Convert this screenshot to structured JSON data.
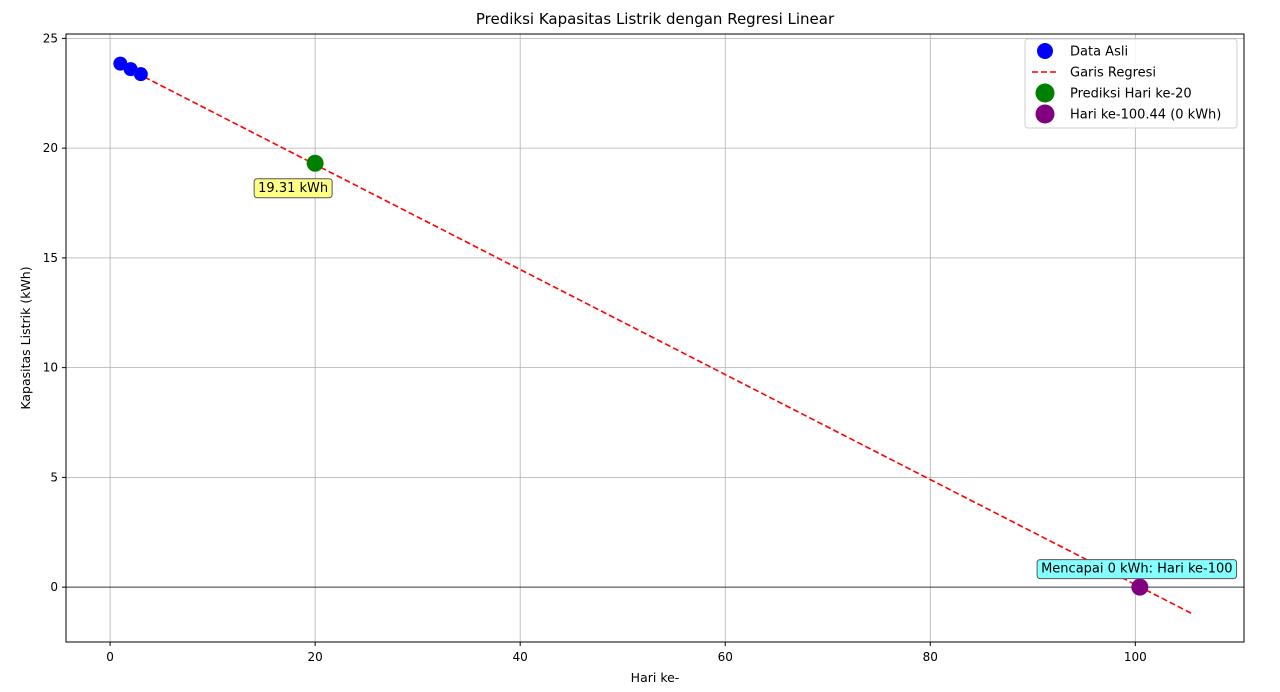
{
  "chart_data": {
    "type": "scatter",
    "title": "Prediksi Kapasitas Listrik dengan Regresi Linear",
    "xlabel": "Hari ke-",
    "ylabel": "Kapasitas Listrik (kWh)",
    "xlim": [
      -4.3,
      110.6
    ],
    "ylim": [
      -2.5,
      25.2
    ],
    "xticks": [
      0,
      20,
      40,
      60,
      80,
      100
    ],
    "yticks": [
      0,
      5,
      10,
      15,
      20,
      25
    ],
    "grid": true,
    "legend_position": "upper right",
    "series": [
      {
        "name": "Data Asli",
        "kind": "scatter",
        "color": "#0000ff",
        "x": [
          1,
          2,
          3
        ],
        "y": [
          23.85,
          23.6,
          23.37
        ]
      },
      {
        "name": "Garis Regresi",
        "kind": "line",
        "style": "dashed",
        "color": "#ff0000",
        "x": [
          1,
          105.5
        ],
        "y": [
          23.8,
          -1.2
        ]
      },
      {
        "name": "Prediksi Hari ke-20",
        "kind": "scatter",
        "color": "#008000",
        "x": [
          20
        ],
        "y": [
          19.31
        ]
      },
      {
        "name": "Hari ke-100.44 (0 kWh)",
        "kind": "scatter",
        "color": "#800080",
        "x": [
          100.44
        ],
        "y": [
          0
        ]
      }
    ],
    "annotations": [
      {
        "text": "19.31 kWh",
        "x": 20,
        "y": 19.31,
        "bg": "#ffff80"
      },
      {
        "text": "Mencapai 0 kWh: Hari ke-100",
        "x": 100.44,
        "y": 0,
        "bg": "#80ffff"
      }
    ]
  }
}
